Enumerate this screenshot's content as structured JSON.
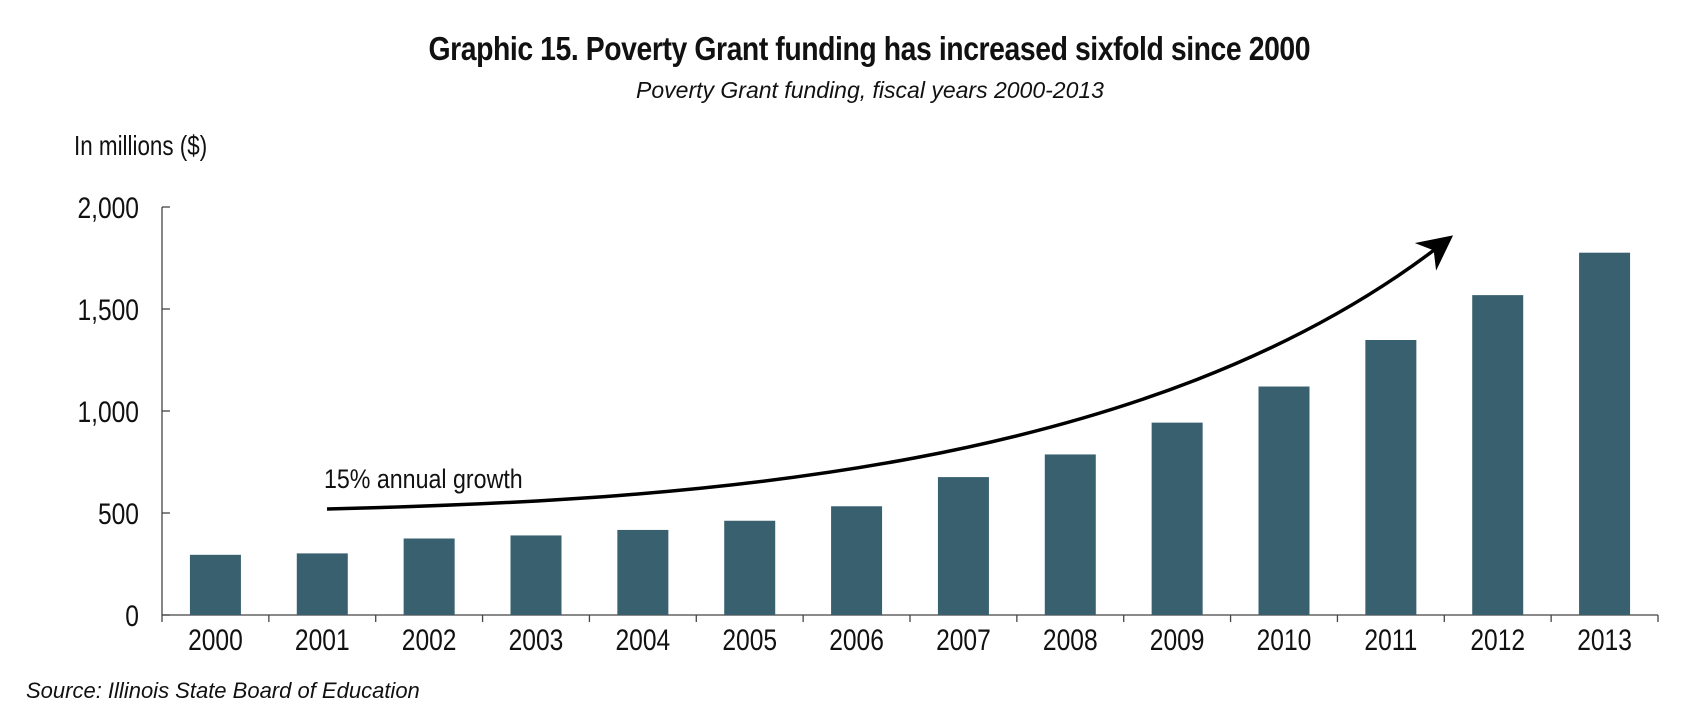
{
  "chart_data": {
    "type": "bar",
    "title": "Graphic 15. Poverty Grant funding has increased sixfold since 2000",
    "subtitle": "Poverty Grant funding, fiscal years 2000-2013",
    "ylabel": "In millions ($)",
    "xlabel": "",
    "categories": [
      "2000",
      "2001",
      "2002",
      "2003",
      "2004",
      "2005",
      "2006",
      "2007",
      "2008",
      "2009",
      "2010",
      "2011",
      "2012",
      "2013"
    ],
    "values": [
      295,
      302,
      375,
      390,
      417,
      462,
      533,
      676,
      787,
      943,
      1120,
      1348,
      1568,
      1776
    ],
    "ylim": [
      0,
      2000
    ],
    "yticks": [
      0,
      500,
      1000,
      1500,
      2000
    ],
    "ytick_labels": [
      "0",
      "500",
      "1,000",
      "1,500",
      "2,000"
    ],
    "bar_color": "#38606f",
    "grid": false,
    "annotation": "15% annual growth",
    "source": "Source: Illinois State Board of Education"
  }
}
